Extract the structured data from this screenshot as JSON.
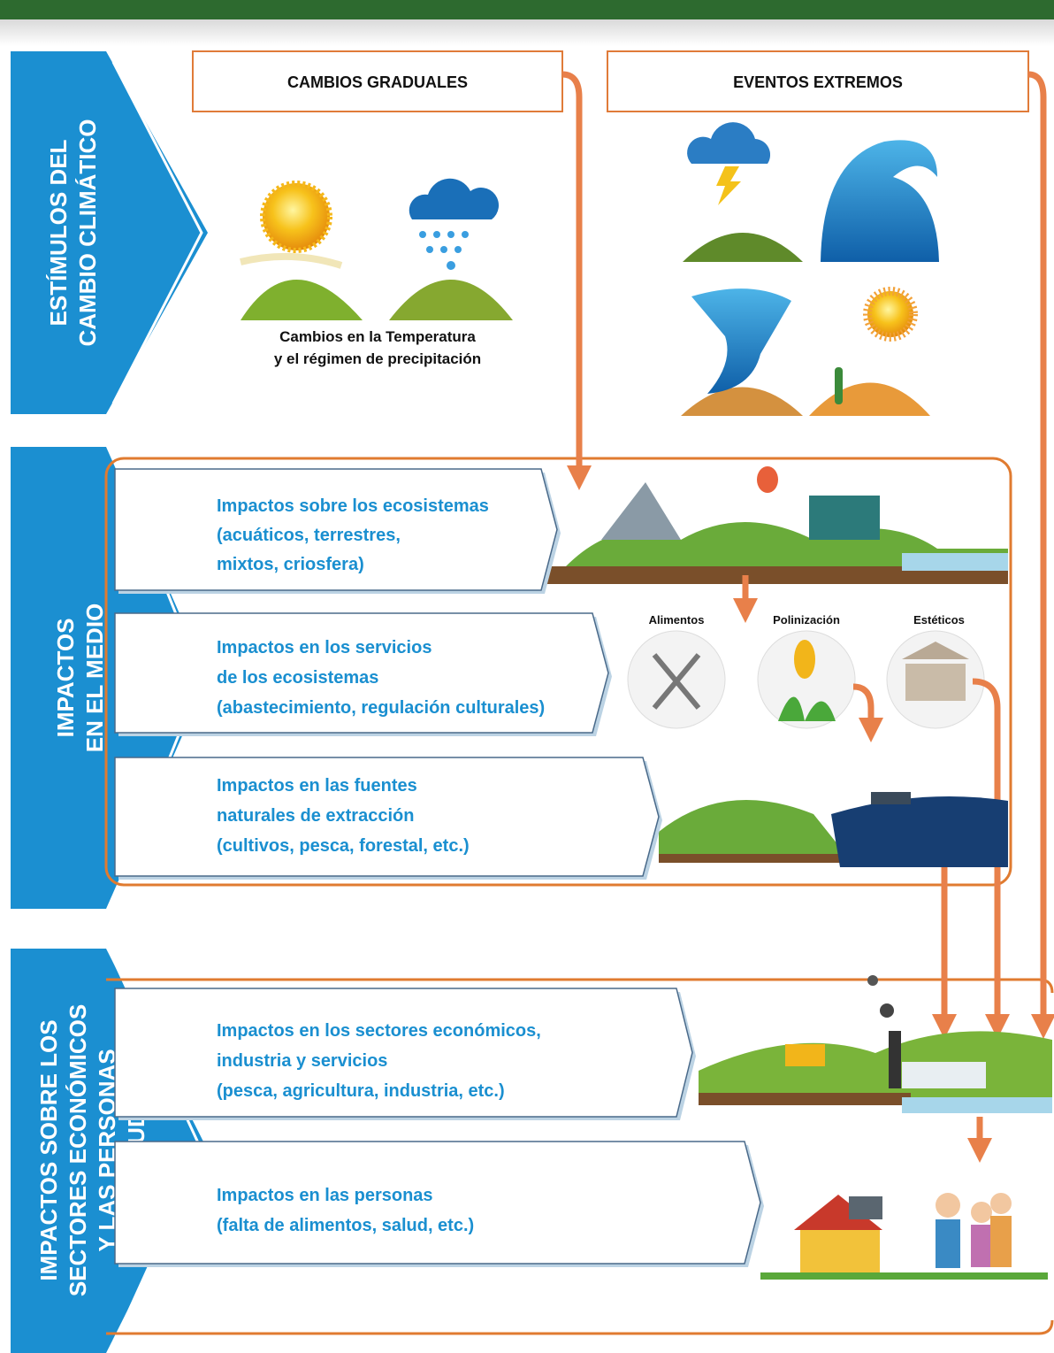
{
  "sections": [
    {
      "label": [
        "ESTÍMULOS DEL",
        "CAMBIO CLIMÁTICO"
      ]
    },
    {
      "label": [
        "IMPACTOS",
        "EN EL MEDIO"
      ]
    },
    {
      "label": [
        "IMPACTOS SOBRE LOS",
        "SECTORES ECONÓMICOS",
        "Y LAS PERSONAS",
        "(SALUD)"
      ]
    }
  ],
  "stimuli": {
    "gradual": {
      "title": "CAMBIOS GRADUALES",
      "caption": [
        "Cambios en la Temperatura",
        "y el régimen de  precipitación"
      ]
    },
    "extreme": {
      "title": "EVENTOS EXTREMOS"
    }
  },
  "impacts": [
    {
      "lines": [
        "Impactos sobre los ecosistemas",
        "(acuáticos, terrestres,",
        "mixtos, criosfera)"
      ]
    },
    {
      "lines": [
        "Impactos  en los servicios",
        "de los ecosistemas",
        "(abastecimiento, regulación culturales)"
      ]
    },
    {
      "lines": [
        "Impactos  en  las fuentes",
        "naturales de extracción",
        "(cultivos, pesca, forestal, etc.)"
      ]
    },
    {
      "lines": [
        "Impactos  en los sectores económicos,",
        "industria y servicios",
        "(pesca, agricultura, industria, etc.)"
      ]
    },
    {
      "lines": [
        "Impactos en las personas",
        "(falta de alimentos, salud, etc.)"
      ]
    }
  ],
  "services": [
    "Alimentos",
    "Polinización",
    "Estéticos"
  ]
}
